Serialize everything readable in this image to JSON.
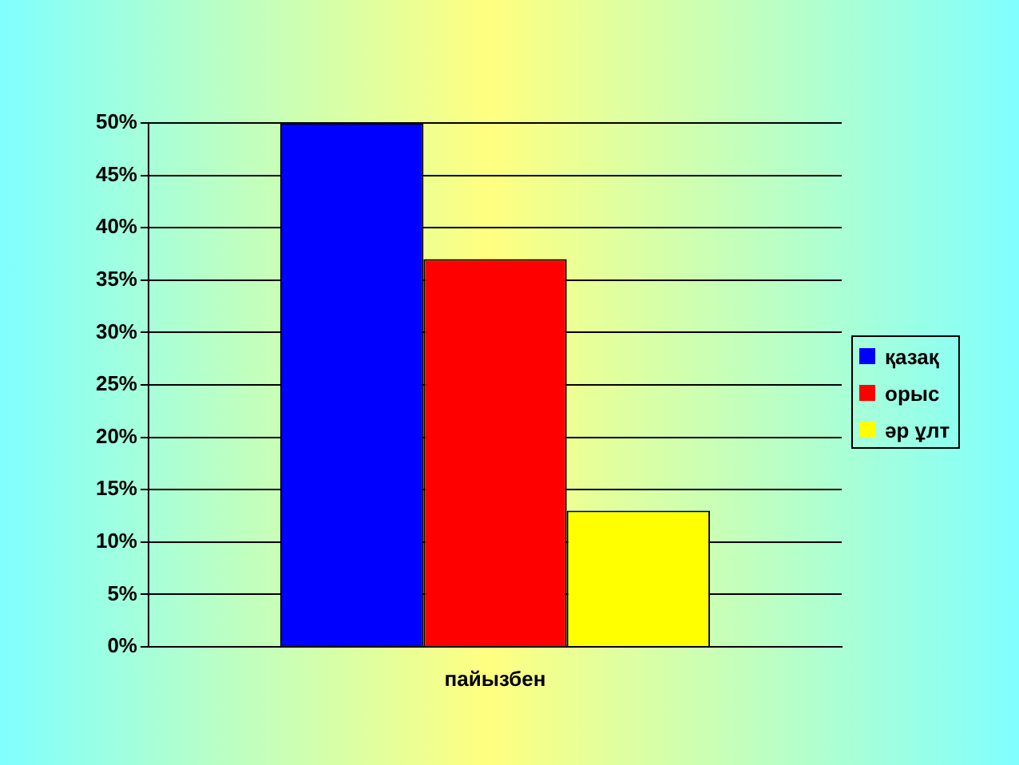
{
  "chart_data": {
    "type": "bar",
    "categories": [
      "пайызбен"
    ],
    "series": [
      {
        "name": "қазақ",
        "color": "#0000ff",
        "values": [
          50
        ]
      },
      {
        "name": "орыс",
        "color": "#ff0000",
        "values": [
          37
        ]
      },
      {
        "name": "әр ұлт",
        "color": "#ffff00",
        "values": [
          13
        ]
      }
    ],
    "ylim": [
      0,
      50
    ],
    "yticks": [
      {
        "value": 0,
        "label": "0%"
      },
      {
        "value": 5,
        "label": "5%"
      },
      {
        "value": 10,
        "label": "10%"
      },
      {
        "value": 15,
        "label": "15%"
      },
      {
        "value": 20,
        "label": "20%"
      },
      {
        "value": 25,
        "label": "25%"
      },
      {
        "value": 30,
        "label": "30%"
      },
      {
        "value": 35,
        "label": "35%"
      },
      {
        "value": 40,
        "label": "40%"
      },
      {
        "value": 45,
        "label": "45%"
      },
      {
        "value": 50,
        "label": "50%"
      }
    ],
    "grid": "y",
    "legend": "right"
  }
}
